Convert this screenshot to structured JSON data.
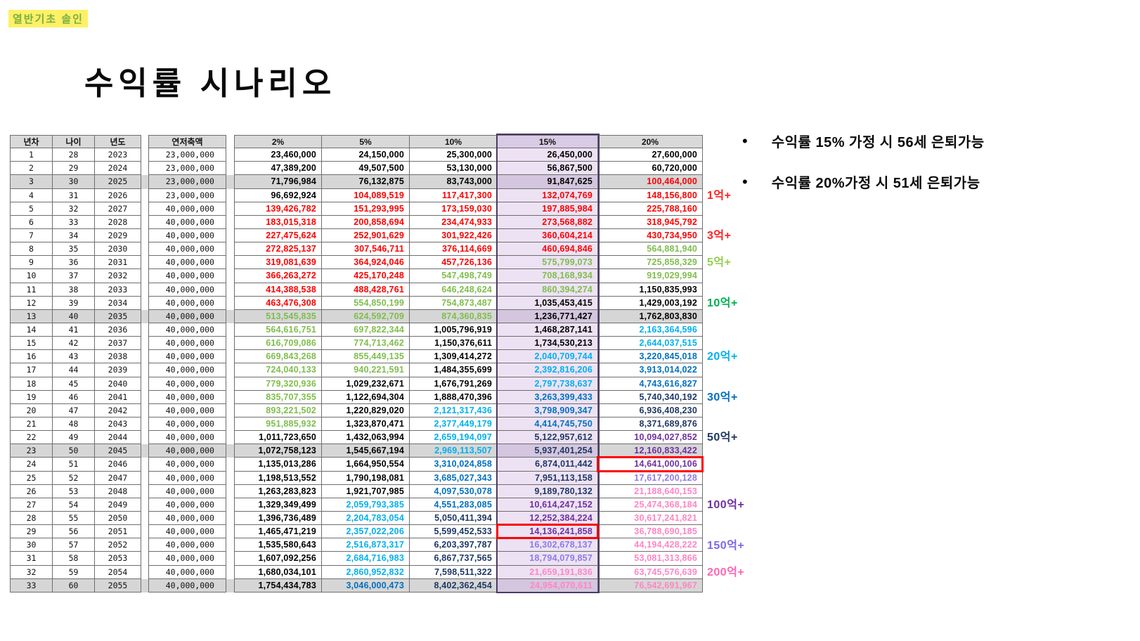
{
  "watermark": "열반기초 솔인",
  "title": "수익률 시나리오",
  "bullet_icon": "•",
  "notes": [
    "수익률 15% 가정 시 56세 은퇴가능",
    "수익률 20%가정 시 51세 은퇴가능"
  ],
  "table": {
    "headers": [
      "년차",
      "나이",
      "년도",
      "연저축액",
      "2%",
      "5%",
      "10%",
      "15%",
      "20%"
    ],
    "highlight_column": "15%",
    "gray_rows": [
      3,
      13,
      23,
      33
    ],
    "red_boxes": [
      {
        "row": 24,
        "column": "20%"
      },
      {
        "row": 29,
        "column": "15%"
      }
    ],
    "rows": [
      [
        1,
        28,
        2023,
        "23,000,000",
        "23,460,000",
        "24,150,000",
        "25,300,000",
        "26,450,000",
        "27,600,000"
      ],
      [
        2,
        29,
        2024,
        "23,000,000",
        "47,389,200",
        "49,507,500",
        "53,130,000",
        "56,867,500",
        "60,720,000"
      ],
      [
        3,
        30,
        2025,
        "23,000,000",
        "71,796,984",
        "76,132,875",
        "83,743,000",
        "91,847,625",
        "100,464,000"
      ],
      [
        4,
        31,
        2026,
        "23,000,000",
        "96,692,924",
        "104,089,519",
        "117,417,300",
        "132,074,769",
        "148,156,800"
      ],
      [
        5,
        32,
        2027,
        "40,000,000",
        "139,426,782",
        "151,293,995",
        "173,159,030",
        "197,885,984",
        "225,788,160"
      ],
      [
        6,
        33,
        2028,
        "40,000,000",
        "183,015,318",
        "200,858,694",
        "234,474,933",
        "273,568,882",
        "318,945,792"
      ],
      [
        7,
        34,
        2029,
        "40,000,000",
        "227,475,624",
        "252,901,629",
        "301,922,426",
        "360,604,214",
        "430,734,950"
      ],
      [
        8,
        35,
        2030,
        "40,000,000",
        "272,825,137",
        "307,546,711",
        "376,114,669",
        "460,694,846",
        "564,881,940"
      ],
      [
        9,
        36,
        2031,
        "40,000,000",
        "319,081,639",
        "364,924,046",
        "457,726,136",
        "575,799,073",
        "725,858,329"
      ],
      [
        10,
        37,
        2032,
        "40,000,000",
        "366,263,272",
        "425,170,248",
        "547,498,749",
        "708,168,934",
        "919,029,994"
      ],
      [
        11,
        38,
        2033,
        "40,000,000",
        "414,388,538",
        "488,428,761",
        "646,248,624",
        "860,394,274",
        "1,150,835,993"
      ],
      [
        12,
        39,
        2034,
        "40,000,000",
        "463,476,308",
        "554,850,199",
        "754,873,487",
        "1,035,453,415",
        "1,429,003,192"
      ],
      [
        13,
        40,
        2035,
        "40,000,000",
        "513,545,835",
        "624,592,709",
        "874,360,835",
        "1,236,771,427",
        "1,762,803,830"
      ],
      [
        14,
        41,
        2036,
        "40,000,000",
        "564,616,751",
        "697,822,344",
        "1,005,796,919",
        "1,468,287,141",
        "2,163,364,596"
      ],
      [
        15,
        42,
        2037,
        "40,000,000",
        "616,709,086",
        "774,713,462",
        "1,150,376,611",
        "1,734,530,213",
        "2,644,037,515"
      ],
      [
        16,
        43,
        2038,
        "40,000,000",
        "669,843,268",
        "855,449,135",
        "1,309,414,272",
        "2,040,709,744",
        "3,220,845,018"
      ],
      [
        17,
        44,
        2039,
        "40,000,000",
        "724,040,133",
        "940,221,591",
        "1,484,355,699",
        "2,392,816,206",
        "3,913,014,022"
      ],
      [
        18,
        45,
        2040,
        "40,000,000",
        "779,320,936",
        "1,029,232,671",
        "1,676,791,269",
        "2,797,738,637",
        "4,743,616,827"
      ],
      [
        19,
        46,
        2041,
        "40,000,000",
        "835,707,355",
        "1,122,694,304",
        "1,888,470,396",
        "3,263,399,433",
        "5,740,340,192"
      ],
      [
        20,
        47,
        2042,
        "40,000,000",
        "893,221,502",
        "1,220,829,020",
        "2,121,317,436",
        "3,798,909,347",
        "6,936,408,230"
      ],
      [
        21,
        48,
        2043,
        "40,000,000",
        "951,885,932",
        "1,323,870,471",
        "2,377,449,179",
        "4,414,745,750",
        "8,371,689,876"
      ],
      [
        22,
        49,
        2044,
        "40,000,000",
        "1,011,723,650",
        "1,432,063,994",
        "2,659,194,097",
        "5,122,957,612",
        "10,094,027,852"
      ],
      [
        23,
        50,
        2045,
        "40,000,000",
        "1,072,758,123",
        "1,545,667,194",
        "2,969,113,507",
        "5,937,401,254",
        "12,160,833,422"
      ],
      [
        24,
        51,
        2046,
        "40,000,000",
        "1,135,013,286",
        "1,664,950,554",
        "3,310,024,858",
        "6,874,011,442",
        "14,641,000,106"
      ],
      [
        25,
        52,
        2047,
        "40,000,000",
        "1,198,513,552",
        "1,790,198,081",
        "3,685,027,343",
        "7,951,113,158",
        "17,617,200,128"
      ],
      [
        26,
        53,
        2048,
        "40,000,000",
        "1,263,283,823",
        "1,921,707,985",
        "4,097,530,078",
        "9,189,780,132",
        "21,188,640,153"
      ],
      [
        27,
        54,
        2049,
        "40,000,000",
        "1,329,349,499",
        "2,059,793,385",
        "4,551,283,085",
        "10,614,247,152",
        "25,474,368,184"
      ],
      [
        28,
        55,
        2050,
        "40,000,000",
        "1,396,736,489",
        "2,204,783,054",
        "5,050,411,394",
        "12,252,384,224",
        "30,617,241,821"
      ],
      [
        29,
        56,
        2051,
        "40,000,000",
        "1,465,471,219",
        "2,357,022,206",
        "5,599,452,533",
        "14,136,241,858",
        "36,788,690,185"
      ],
      [
        30,
        57,
        2052,
        "40,000,000",
        "1,535,580,643",
        "2,516,873,317",
        "6,203,397,787",
        "16,302,678,137",
        "44,194,428,222"
      ],
      [
        31,
        58,
        2053,
        "40,000,000",
        "1,607,092,256",
        "2,684,716,983",
        "6,867,737,565",
        "18,794,079,857",
        "53,081,313,866"
      ],
      [
        32,
        59,
        2054,
        "40,000,000",
        "1,680,034,101",
        "2,860,952,832",
        "7,598,511,322",
        "21,659,191,836",
        "63,745,576,639"
      ],
      [
        33,
        60,
        2055,
        "40,000,000",
        "1,754,434,783",
        "3,046,000,473",
        "8,402,362,454",
        "24,954,070,611",
        "76,542,691,967"
      ]
    ]
  },
  "side_labels": [
    {
      "label": "1억+",
      "row": 4,
      "color": "#FF2020"
    },
    {
      "label": "3억+",
      "row": 7,
      "color": "#FF2020"
    },
    {
      "label": "5억+",
      "row": 9,
      "color": "#92D050"
    },
    {
      "label": "10억+",
      "row": 12,
      "color": "#00B050"
    },
    {
      "label": "20억+",
      "row": 16,
      "color": "#00B0F0"
    },
    {
      "label": "30억+",
      "row": 19,
      "color": "#0070C0"
    },
    {
      "label": "50억+",
      "row": 22,
      "color": "#1F3864"
    },
    {
      "label": "100억+",
      "row": 27,
      "color": "#7030A0"
    },
    {
      "label": "150억+",
      "row": 30,
      "color": "#7B68EE"
    },
    {
      "label": "200억+",
      "row": 32,
      "color": "#FF66B2"
    }
  ],
  "value_color_rules": [
    {
      "min": 20000000000,
      "color": "#FF85C4"
    },
    {
      "min": 15000000000,
      "color": "#8D7BE8"
    },
    {
      "min": 10000000000,
      "color": "#7030A0"
    },
    {
      "min": 5000000000,
      "color": "#1F3864"
    },
    {
      "min": 3000000000,
      "color": "#0070C0"
    },
    {
      "min": 2000000000,
      "color": "#00B0F0"
    },
    {
      "min": 1000000000,
      "color": "#000000"
    },
    {
      "min": 500000000,
      "color": "#7EBE4C"
    },
    {
      "min": 100000000,
      "color": "#FF0000"
    },
    {
      "min": 0,
      "color": "#000000"
    }
  ],
  "colors": {
    "highlight_col_bg": "#EDE2F3",
    "highlight_col_bg_gray": "#D3C6DE",
    "gray_row_bg": "#D6D6D6",
    "header_bg": "#D9D9D9",
    "header_15_bg": "#D9CBE5",
    "red_box": "#FF0000",
    "column_outline": "#4A3C63",
    "watermark_text": "#76B043",
    "watermark_bg": "#FFF066"
  }
}
